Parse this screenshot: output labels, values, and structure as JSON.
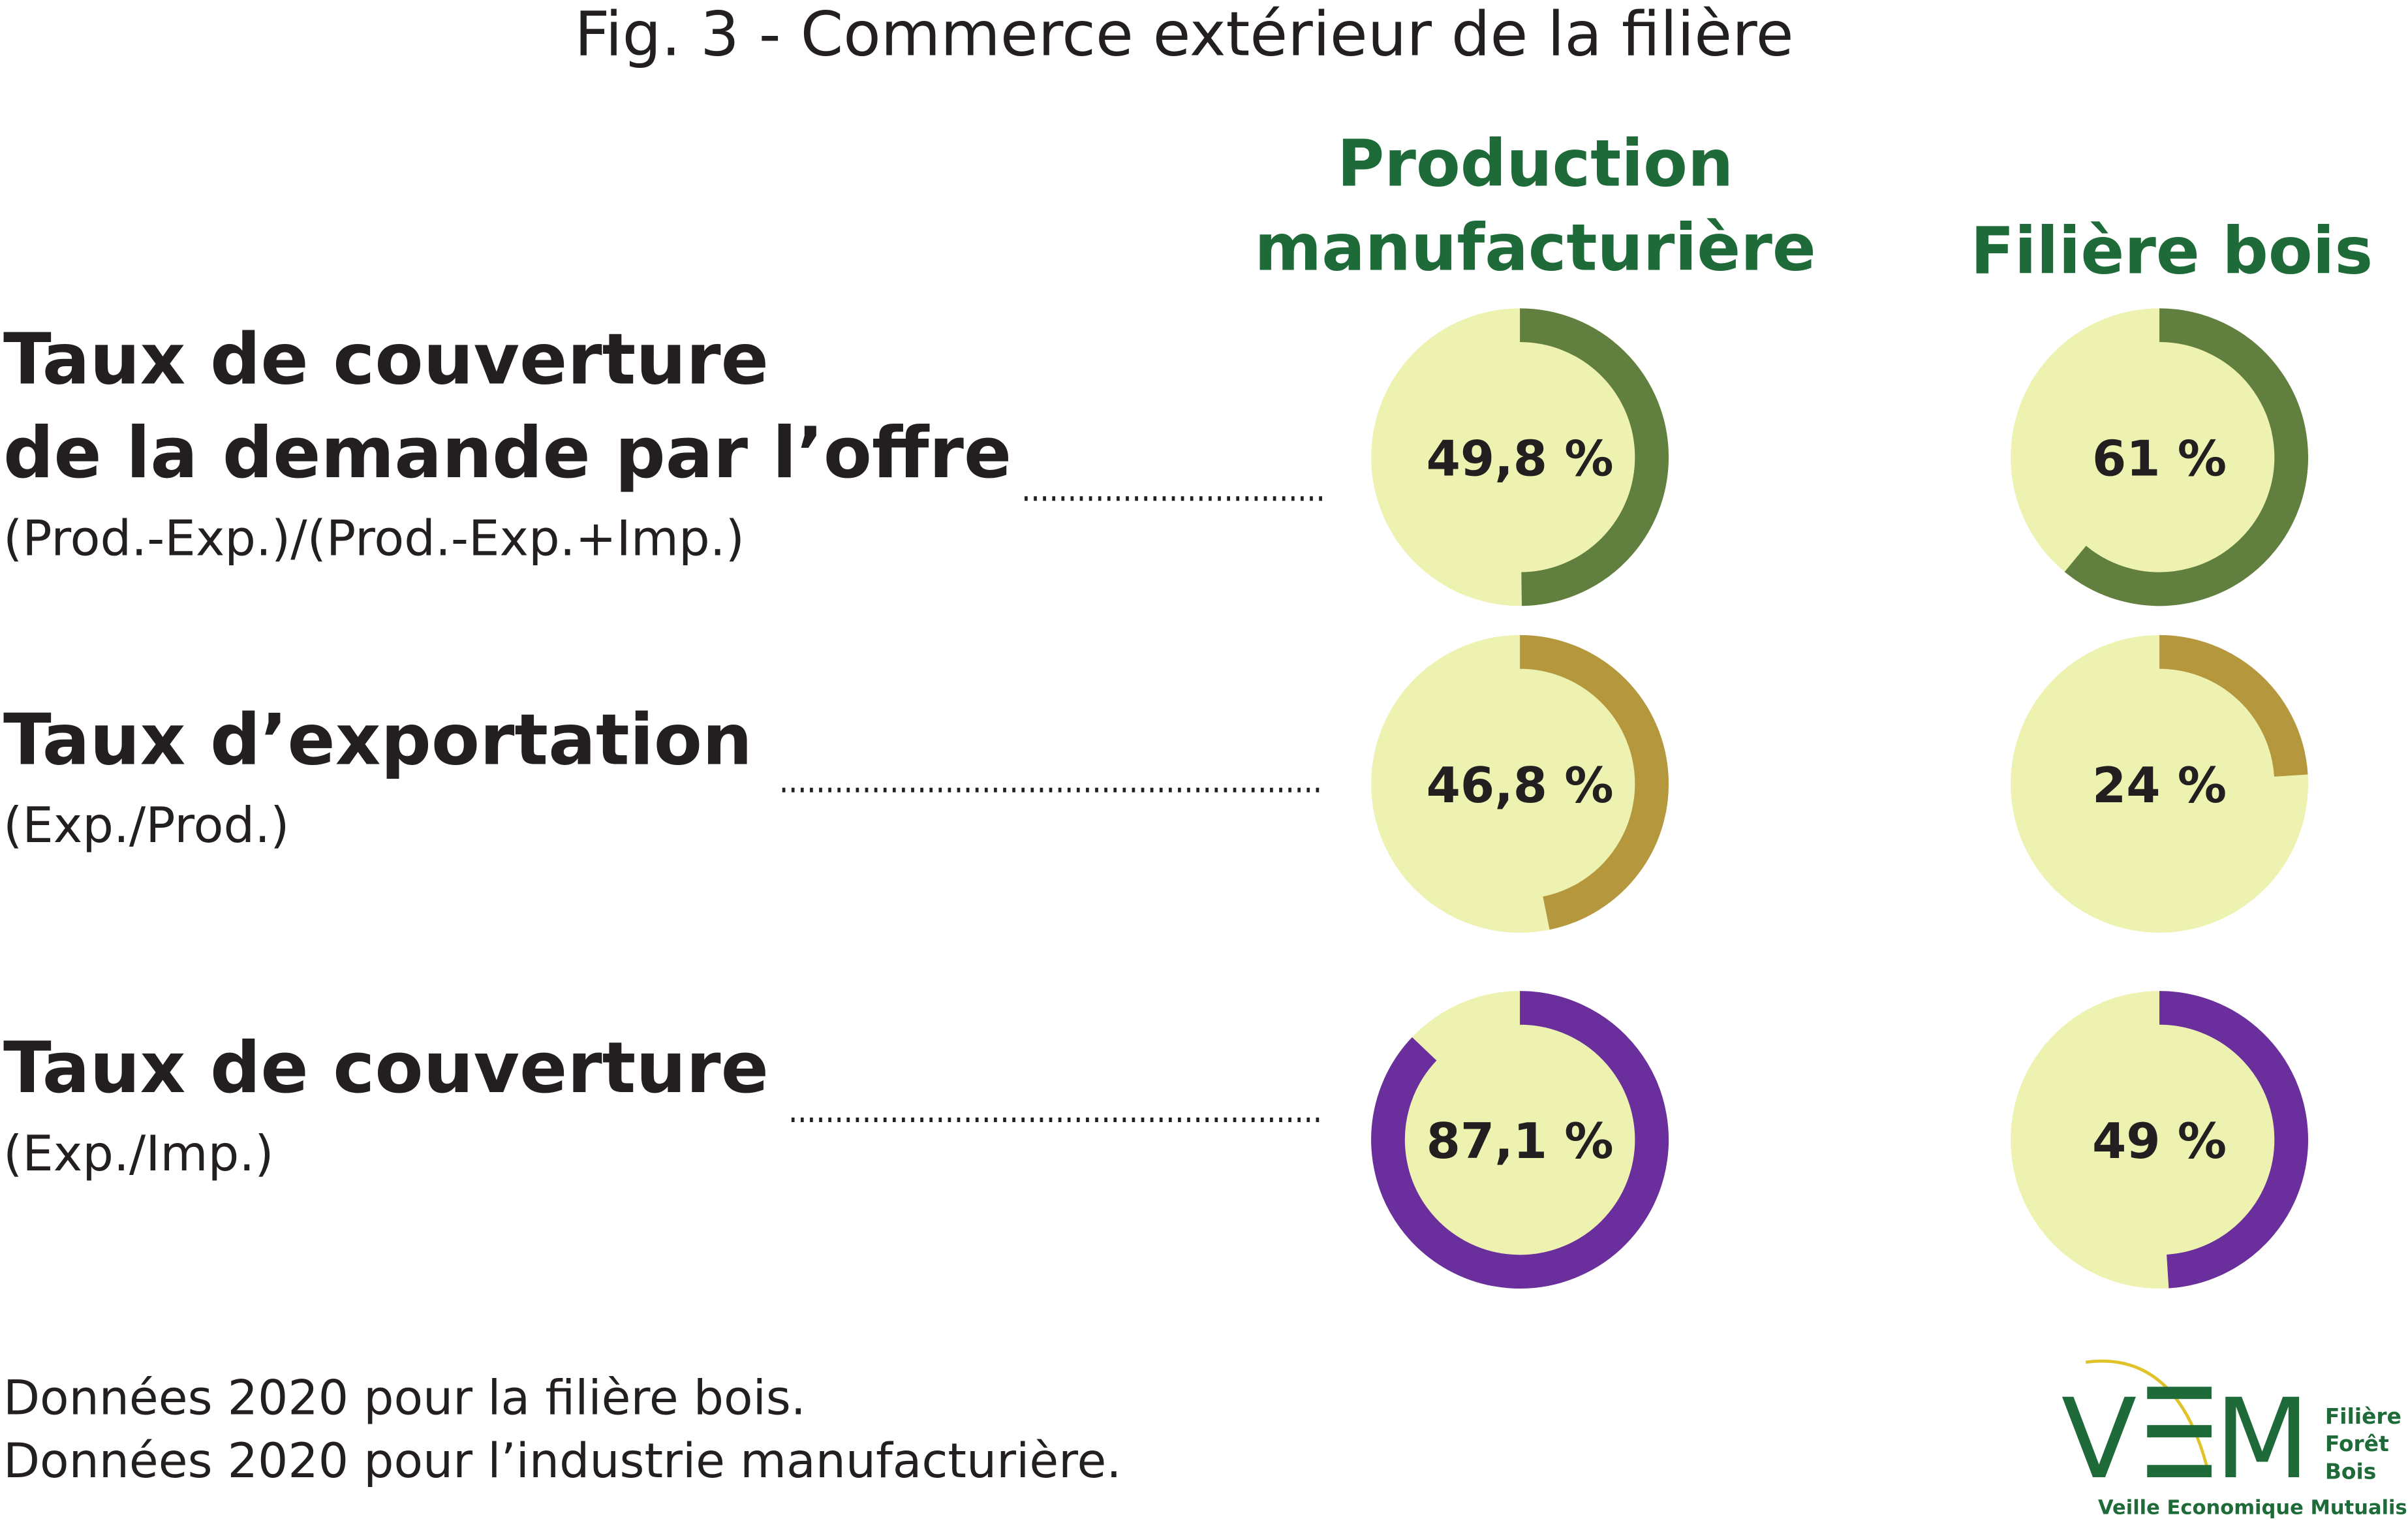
{
  "chart_data": {
    "type": "donut",
    "title": "Fig. 3 - Commerce extérieur de la filière",
    "row_titles": [
      [
        "Taux de couverture",
        "de la demande par l’offre"
      ],
      [
        "Taux d’exportation"
      ],
      [
        "Taux de couverture"
      ]
    ],
    "formulas": [
      "(Prod.-Exp.)/(Prod.-Exp.+Imp.)",
      "(Exp./Prod.)",
      "(Exp./Imp.)"
    ],
    "row_colors": [
      "#61803f",
      "#b5973e",
      "#6a2f9c"
    ],
    "track_color": "#eef2b0",
    "header_color": "#1e6b39",
    "ylim": [
      0,
      100
    ],
    "series": [
      {
        "name": "Production manufacturière",
        "values": [
          49.8,
          46.8,
          87.1
        ],
        "value_labels": [
          "49,8 %",
          "46,8 %",
          "87,1 %"
        ]
      },
      {
        "name": "Filière bois",
        "values": [
          61,
          24,
          49
        ],
        "value_labels": [
          "61 %",
          "24 %",
          "49 %"
        ]
      }
    ],
    "notes": [
      "Données 2020 pour la filière bois.",
      "Données 2020 pour l’industrie manufacturière."
    ]
  },
  "logo": {
    "mark": [
      "V",
      "M"
    ],
    "side": [
      "Filière",
      "Forêt",
      "Bois"
    ],
    "tagline": "Veille Economique Mutualisée"
  }
}
